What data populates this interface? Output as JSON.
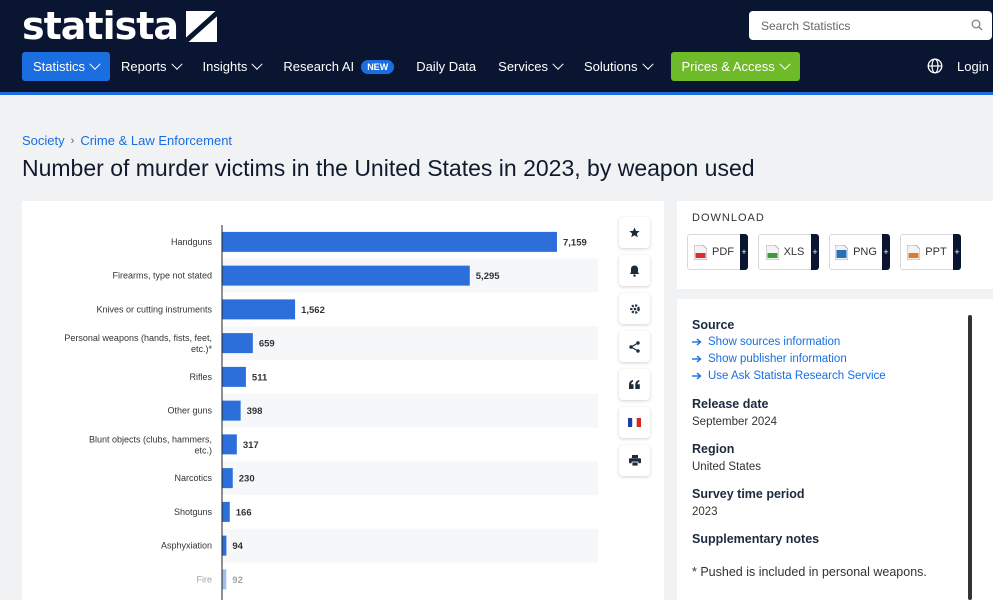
{
  "header": {
    "logo_text": "statista",
    "search_placeholder": "Search Statistics",
    "nav": [
      {
        "label": "Statistics"
      },
      {
        "label": "Reports"
      },
      {
        "label": "Insights"
      },
      {
        "label": "Research AI",
        "badge": "NEW"
      },
      {
        "label": "Daily Data"
      },
      {
        "label": "Services"
      },
      {
        "label": "Solutions"
      },
      {
        "label": "Prices & Access"
      }
    ],
    "login": "Login"
  },
  "breadcrumb": {
    "items": [
      "Society",
      "Crime & Law Enforcement"
    ],
    "separator": "›"
  },
  "page_title": "Number of murder victims in the United States in 2023, by weapon used",
  "download": {
    "title": "DOWNLOAD",
    "buttons": [
      {
        "label": "PDF",
        "plus": "+",
        "icon": "pdf-file-icon",
        "color": "#d9302c"
      },
      {
        "label": "XLS",
        "plus": "+",
        "icon": "xls-file-icon",
        "color": "#3d9b35"
      },
      {
        "label": "PNG",
        "plus": "+",
        "icon": "png-file-icon",
        "color": "#2a6fb8"
      },
      {
        "label": "PPT",
        "plus": "+",
        "icon": "ppt-file-icon",
        "color": "#e07b2a"
      }
    ]
  },
  "info": {
    "source_title": "Source",
    "source_links": [
      "Show sources information",
      "Show publisher information",
      "Use Ask Statista Research Service"
    ],
    "release_title": "Release date",
    "release_value": "September 2024",
    "region_title": "Region",
    "region_value": "United States",
    "survey_title": "Survey time period",
    "survey_value": "2023",
    "notes_title": "Supplementary notes",
    "notes_value": "* Pushed is included in personal weapons."
  },
  "toolbar": [
    "star-icon",
    "bell-icon",
    "gear-icon",
    "share-icon",
    "quote-icon",
    "french-flag-icon",
    "print-icon"
  ],
  "colors": {
    "brand_dark": "#0a1631",
    "accent": "#1a6ee0",
    "prices_green": "#6fba29",
    "bar": "#2c6fdb"
  },
  "chart_data": {
    "type": "bar",
    "orientation": "horizontal",
    "categories": [
      "Handguns",
      "Firearms, type not stated",
      "Knives or cutting instruments",
      "Personal weapons (hands, fists, feet, etc.)*",
      "Rifles",
      "Other guns",
      "Blunt objects (clubs, hammers, etc.)",
      "Narcotics",
      "Shotguns",
      "Asphyxiation",
      "Fire"
    ],
    "values": [
      7159,
      5295,
      1562,
      659,
      511,
      398,
      317,
      230,
      166,
      94,
      92
    ],
    "value_labels": [
      "7,159",
      "5,295",
      "1,562",
      "659",
      "511",
      "398",
      "317",
      "230",
      "166",
      "94",
      "92"
    ],
    "xlim": [
      0,
      8000
    ],
    "grid": false,
    "legend": "none"
  }
}
